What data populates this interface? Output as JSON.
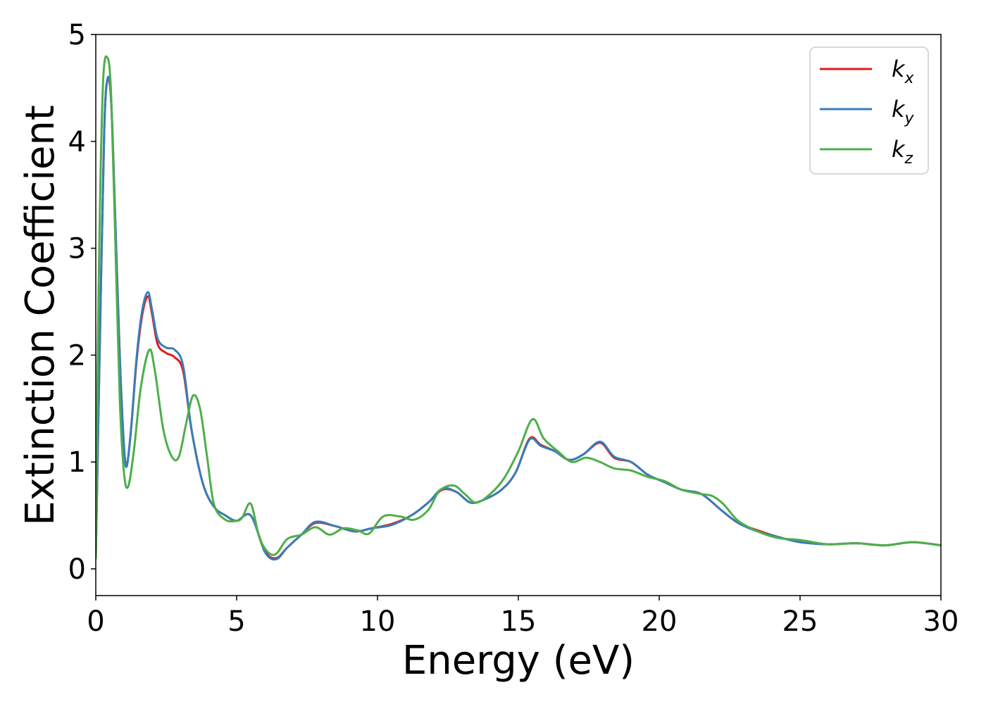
{
  "chart_data": {
    "type": "line",
    "title": "",
    "xlabel": "Energy (eV)",
    "ylabel": "Extinction Coefficient",
    "xlim": [
      0,
      30
    ],
    "ylim": [
      -0.25,
      5
    ],
    "xticks": [
      "0",
      "5",
      "10",
      "15",
      "20",
      "25",
      "30"
    ],
    "yticks": [
      "0",
      "1",
      "2",
      "3",
      "4",
      "5"
    ],
    "grid": false,
    "legend_position": "top-right",
    "series": [
      {
        "name": "k",
        "subscript": "x",
        "color": "#e41a1c",
        "x": [
          0,
          0.15,
          0.3,
          0.42,
          0.55,
          0.7,
          0.85,
          1.0,
          1.1,
          1.25,
          1.45,
          1.65,
          1.85,
          2.0,
          2.2,
          2.5,
          2.8,
          3.1,
          3.4,
          3.8,
          4.2,
          4.6,
          5.0,
          5.5,
          6.0,
          6.4,
          6.8,
          7.3,
          7.8,
          8.5,
          9.2,
          9.8,
          10.5,
          11.2,
          11.8,
          12.3,
          12.8,
          13.3,
          13.8,
          14.4,
          14.9,
          15.4,
          15.8,
          16.3,
          16.8,
          17.3,
          17.9,
          18.4,
          19.0,
          19.6,
          20.2,
          20.8,
          21.5,
          22.2,
          22.8,
          23.5,
          24.2,
          25.0,
          26.0,
          27.0,
          28.0,
          29.0,
          30.0
        ],
        "y": [
          0.1,
          2.2,
          4.1,
          4.58,
          4.35,
          3.2,
          2.0,
          1.15,
          0.97,
          1.3,
          1.95,
          2.38,
          2.55,
          2.38,
          2.1,
          2.02,
          1.98,
          1.85,
          1.3,
          0.8,
          0.58,
          0.5,
          0.45,
          0.5,
          0.17,
          0.1,
          0.2,
          0.32,
          0.43,
          0.4,
          0.35,
          0.38,
          0.42,
          0.5,
          0.62,
          0.74,
          0.72,
          0.62,
          0.65,
          0.74,
          0.9,
          1.22,
          1.16,
          1.1,
          1.02,
          1.07,
          1.18,
          1.04,
          1.0,
          0.88,
          0.81,
          0.74,
          0.7,
          0.55,
          0.43,
          0.36,
          0.3,
          0.25,
          0.23,
          0.24,
          0.22,
          0.25,
          0.22
        ]
      },
      {
        "name": "k",
        "subscript": "y",
        "color": "#377eb8",
        "x": [
          0,
          0.15,
          0.3,
          0.42,
          0.55,
          0.7,
          0.85,
          1.0,
          1.1,
          1.25,
          1.45,
          1.65,
          1.85,
          2.0,
          2.2,
          2.5,
          2.8,
          3.1,
          3.4,
          3.8,
          4.2,
          4.6,
          5.0,
          5.5,
          6.0,
          6.4,
          6.8,
          7.3,
          7.8,
          8.5,
          9.2,
          9.8,
          10.5,
          11.2,
          11.8,
          12.3,
          12.8,
          13.3,
          13.8,
          14.4,
          14.9,
          15.4,
          15.8,
          16.3,
          16.8,
          17.3,
          17.9,
          18.4,
          19.0,
          19.6,
          20.2,
          20.8,
          21.5,
          22.2,
          22.8,
          23.5,
          24.2,
          25.0,
          26.0,
          27.0,
          28.0,
          29.0,
          30.0
        ],
        "y": [
          0.1,
          2.2,
          4.1,
          4.59,
          4.36,
          3.2,
          2.0,
          1.15,
          0.96,
          1.3,
          1.98,
          2.42,
          2.59,
          2.42,
          2.15,
          2.07,
          2.05,
          1.9,
          1.3,
          0.8,
          0.58,
          0.5,
          0.45,
          0.5,
          0.16,
          0.09,
          0.2,
          0.32,
          0.44,
          0.4,
          0.35,
          0.38,
          0.41,
          0.5,
          0.62,
          0.75,
          0.72,
          0.62,
          0.65,
          0.74,
          0.9,
          1.21,
          1.15,
          1.1,
          1.02,
          1.07,
          1.19,
          1.05,
          1.0,
          0.88,
          0.81,
          0.74,
          0.7,
          0.55,
          0.43,
          0.35,
          0.3,
          0.25,
          0.23,
          0.24,
          0.22,
          0.25,
          0.22
        ]
      },
      {
        "name": "k",
        "subscript": "z",
        "color": "#4daf4a",
        "x": [
          0,
          0.1,
          0.25,
          0.42,
          0.55,
          0.7,
          0.85,
          1.0,
          1.15,
          1.35,
          1.6,
          1.9,
          2.1,
          2.4,
          2.7,
          2.95,
          3.2,
          3.45,
          3.7,
          3.95,
          4.2,
          4.6,
          5.0,
          5.2,
          5.5,
          5.8,
          6.1,
          6.4,
          6.8,
          7.3,
          7.8,
          8.3,
          8.8,
          9.3,
          9.7,
          10.2,
          10.8,
          11.3,
          11.8,
          12.2,
          12.7,
          13.1,
          13.5,
          14.0,
          14.5,
          15.0,
          15.5,
          15.9,
          16.4,
          16.9,
          17.4,
          17.9,
          18.4,
          19.0,
          19.6,
          20.2,
          20.8,
          21.5,
          21.9,
          22.3,
          22.8,
          23.5,
          24.2,
          25.0,
          26.0,
          27.0,
          28.0,
          29.0,
          30.0
        ],
        "y": [
          0.1,
          2.6,
          4.5,
          4.78,
          4.4,
          3.0,
          1.6,
          0.9,
          0.77,
          1.1,
          1.7,
          2.05,
          1.85,
          1.3,
          1.05,
          1.05,
          1.35,
          1.62,
          1.5,
          1.05,
          0.6,
          0.46,
          0.45,
          0.48,
          0.61,
          0.3,
          0.16,
          0.14,
          0.28,
          0.32,
          0.39,
          0.32,
          0.38,
          0.36,
          0.33,
          0.49,
          0.49,
          0.46,
          0.55,
          0.73,
          0.78,
          0.7,
          0.62,
          0.7,
          0.85,
          1.1,
          1.4,
          1.22,
          1.1,
          1.0,
          1.04,
          1.0,
          0.94,
          0.92,
          0.86,
          0.82,
          0.74,
          0.7,
          0.68,
          0.6,
          0.45,
          0.35,
          0.29,
          0.27,
          0.23,
          0.24,
          0.22,
          0.25,
          0.22
        ]
      }
    ]
  },
  "legend": [
    {
      "main": "k",
      "sub": "x"
    },
    {
      "main": "k",
      "sub": "y"
    },
    {
      "main": "k",
      "sub": "z"
    }
  ]
}
